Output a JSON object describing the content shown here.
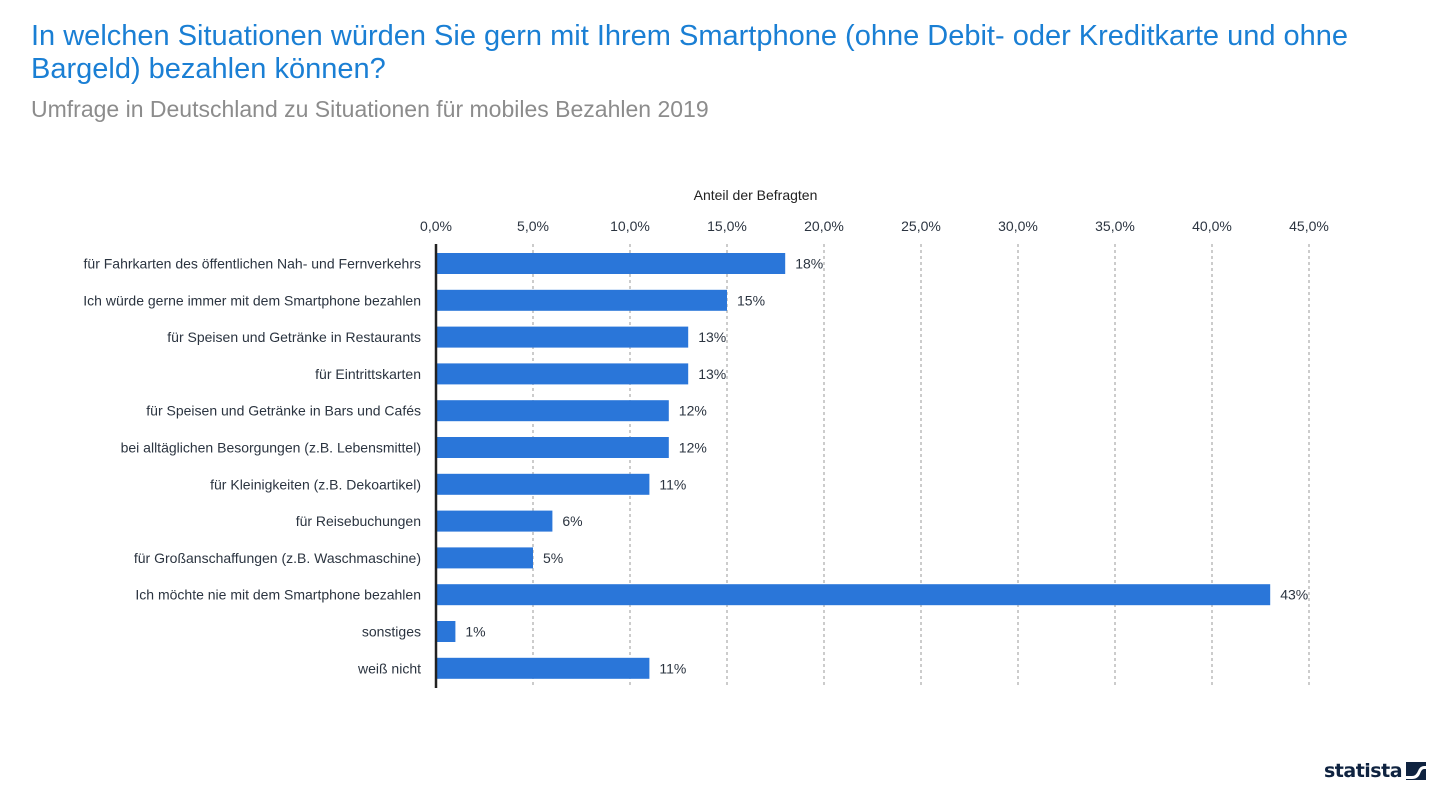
{
  "header": {
    "title": "In welchen Situationen würden Sie gern mit Ihrem Smartphone (ohne Debit- oder Kreditkarte und ohne Bargeld) bezahlen können?",
    "subtitle": "Umfrage in Deutschland zu Situationen für mobiles Bezahlen 2019"
  },
  "branding": {
    "logo_text": "statista",
    "logo_icon": "statista-wave-icon"
  },
  "colors": {
    "title": "#1a7fd4",
    "bar": "#2a76d9",
    "grid": "#9a9a9a",
    "axis": "#222222"
  },
  "chart_data": {
    "type": "bar",
    "orientation": "horizontal",
    "title": "In welchen Situationen würden Sie gern mit Ihrem Smartphone (ohne Debit- oder Kreditkarte und ohne Bargeld) bezahlen können?",
    "subtitle": "Umfrage in Deutschland zu Situationen für mobiles Bezahlen 2019",
    "xlabel": "Anteil der Befragten",
    "ylabel": "",
    "xlim": [
      0,
      45
    ],
    "x_ticks": [
      0,
      5,
      10,
      15,
      20,
      25,
      30,
      35,
      40,
      45
    ],
    "x_tick_labels": [
      "0,0%",
      "5,0%",
      "10,0%",
      "15,0%",
      "20,0%",
      "25,0%",
      "30,0%",
      "35,0%",
      "40,0%",
      "45,0%"
    ],
    "x_axis_position": "top",
    "grid": "vertical dashed",
    "categories": [
      "für Fahrkarten des öffentlichen Nah- und Fernverkehrs",
      "Ich würde gerne immer mit dem Smartphone bezahlen",
      "für Speisen und Getränke in Restaurants",
      "für Eintrittskarten",
      "für Speisen und Getränke in Bars und Cafés",
      "bei alltäglichen Besorgungen (z.B. Lebensmittel)",
      "für Kleinigkeiten (z.B. Dekoartikel)",
      "für Reisebuchungen",
      "für Großanschaffungen (z.B. Waschmaschine)",
      "Ich möchte nie mit dem Smartphone bezahlen",
      "sonstiges",
      "weiß nicht"
    ],
    "values": [
      18,
      15,
      13,
      13,
      12,
      12,
      11,
      6,
      5,
      43,
      1,
      11
    ],
    "value_labels": [
      "18%",
      "15%",
      "13%",
      "13%",
      "12%",
      "12%",
      "11%",
      "6%",
      "5%",
      "43%",
      "1%",
      "11%"
    ]
  }
}
